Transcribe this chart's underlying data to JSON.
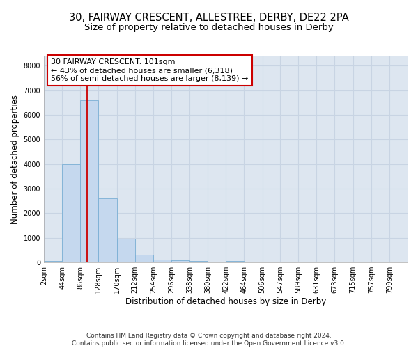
{
  "title_line1": "30, FAIRWAY CRESCENT, ALLESTREE, DERBY, DE22 2PA",
  "title_line2": "Size of property relative to detached houses in Derby",
  "xlabel": "Distribution of detached houses by size in Derby",
  "ylabel": "Number of detached properties",
  "bar_color": "#c5d8ee",
  "bar_edge_color": "#7aafd4",
  "grid_color": "#c8d4e3",
  "plot_bg_color": "#dde6f0",
  "fig_bg_color": "#ffffff",
  "annotation_box_color": "#ffffff",
  "annotation_border_color": "#cc0000",
  "vline_color": "#cc0000",
  "footer": "Contains HM Land Registry data © Crown copyright and database right 2024.\nContains public sector information licensed under the Open Government Licence v3.0.",
  "annotation_line1": "30 FAIRWAY CRESCENT: 101sqm",
  "annotation_line2": "← 43% of detached houses are smaller (6,318)",
  "annotation_line3": "56% of semi-detached houses are larger (8,139) →",
  "property_size": 101,
  "bin_edges": [
    2,
    44,
    86,
    128,
    170,
    212,
    254,
    296,
    338,
    380,
    422,
    464,
    506,
    547,
    589,
    631,
    673,
    715,
    757,
    799,
    841
  ],
  "bar_heights": [
    65,
    4000,
    6600,
    2600,
    950,
    310,
    115,
    100,
    65,
    0,
    65,
    0,
    0,
    0,
    0,
    0,
    0,
    0,
    0,
    0
  ],
  "ylim": [
    0,
    8400
  ],
  "yticks": [
    0,
    1000,
    2000,
    3000,
    4000,
    5000,
    6000,
    7000,
    8000
  ],
  "title_fontsize": 10.5,
  "subtitle_fontsize": 9.5,
  "axis_label_fontsize": 8.5,
  "tick_fontsize": 7,
  "annotation_fontsize": 8,
  "footer_fontsize": 6.5
}
